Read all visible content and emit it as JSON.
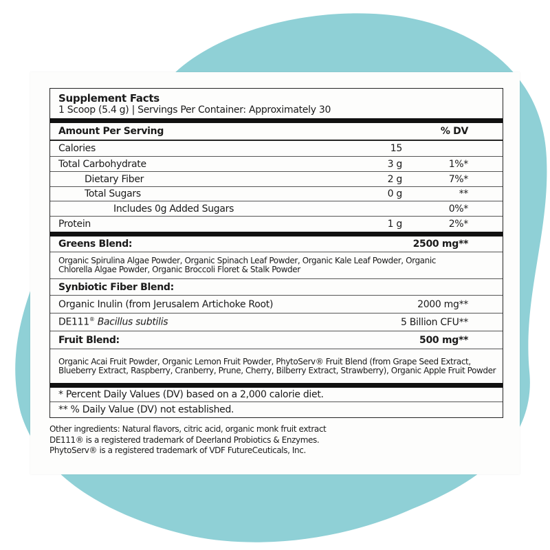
{
  "background_color": "#8fd0d6",
  "title": "Supplement Facts",
  "serving": "1 Scoop (5.4 g) | Servings Per Container: Approximately 30",
  "header": {
    "amount_label": "Amount Per Serving",
    "dv_label": "% DV"
  },
  "nutrients": [
    {
      "label": "Calories",
      "amount": "15",
      "dv": ""
    },
    {
      "label": "Total Carbohydrate",
      "amount": "3 g",
      "dv": "1%*"
    },
    {
      "label": "Dietary Fiber",
      "amount": "2 g",
      "dv": "7%*"
    },
    {
      "label": "Total Sugars",
      "amount": "0 g",
      "dv": "**"
    },
    {
      "label": "Includes 0g Added Sugars",
      "amount": "",
      "dv": "0%*"
    },
    {
      "label": "Protein",
      "amount": "1 g",
      "dv": "2%*"
    }
  ],
  "greens": {
    "label": "Greens Blend:",
    "amount": "2500 mg**",
    "ingredients": "Organic Spirulina Algae Powder, Organic Spinach Leaf Powder, Organic Kale Leaf Powder, Organic Chlorella Algae Powder, Organic Broccoli Floret & Stalk Powder"
  },
  "synbiotic": {
    "label": "Synbiotic Fiber Blend:",
    "items": [
      {
        "label": "Organic Inulin (from Jerusalem Artichoke Root)",
        "amount": "2000 mg**"
      },
      {
        "label_prefix": "DE111",
        "reg": "®",
        "label_italic": "Bacillus subtilis",
        "amount": "5 Billion CFU**"
      }
    ]
  },
  "fruit": {
    "label": "Fruit Blend:",
    "amount": "500 mg**",
    "ingredients": "Organic Acai Fruit Powder, Organic Lemon Fruit Powder, PhytoServ® Fruit Blend (from Grape Seed Extract, Blueberry Extract, Raspberry, Cranberry, Prune, Cherry, Bilberry Extract, Strawberry), Organic Apple Fruit Powder"
  },
  "notes": [
    "* Percent Daily Values (DV) based on a 2,000 calorie diet.",
    "** % Daily Value (DV) not established."
  ],
  "footer": [
    "Other ingredients: Natural flavors, citric acid, organic monk fruit extract",
    "DE111® is a registered trademark of Deerland Probiotics & Enzymes.",
    "PhytoServ® is a registered trademark of VDF FutureCeuticals, Inc."
  ]
}
